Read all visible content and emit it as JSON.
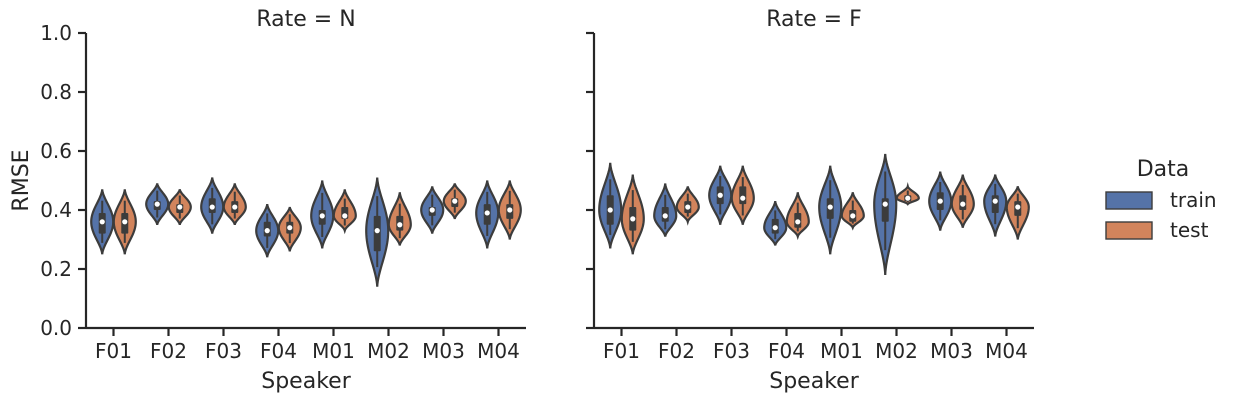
{
  "chart_data": {
    "type": "violin",
    "ylabel": "RMSE",
    "ylim": [
      0.0,
      1.0
    ],
    "yticks": [
      "0.0",
      "0.2",
      "0.4",
      "0.6",
      "0.8",
      "1.0"
    ],
    "categories": [
      "F01",
      "F02",
      "F03",
      "F04",
      "M01",
      "M02",
      "M03",
      "M04"
    ],
    "xlabel": "Speaker",
    "legend": {
      "title": "Data",
      "placement": "right",
      "items": [
        {
          "label": "train",
          "color": "#5573a8"
        },
        {
          "label": "test",
          "color": "#d2845c"
        }
      ]
    },
    "panels": [
      {
        "title": "Rate = N",
        "series": [
          {
            "name": "train",
            "color": "#5573a8",
            "groups": [
              {
                "min": 0.25,
                "q1": 0.32,
                "median": 0.36,
                "q3": 0.39,
                "max": 0.47
              },
              {
                "min": 0.35,
                "q1": 0.4,
                "median": 0.42,
                "q3": 0.43,
                "max": 0.49
              },
              {
                "min": 0.32,
                "q1": 0.39,
                "median": 0.41,
                "q3": 0.44,
                "max": 0.51
              },
              {
                "min": 0.24,
                "q1": 0.31,
                "median": 0.33,
                "q3": 0.36,
                "max": 0.42
              },
              {
                "min": 0.27,
                "q1": 0.35,
                "median": 0.38,
                "q3": 0.4,
                "max": 0.5
              },
              {
                "min": 0.14,
                "q1": 0.26,
                "median": 0.33,
                "q3": 0.38,
                "max": 0.51
              },
              {
                "min": 0.32,
                "q1": 0.38,
                "median": 0.4,
                "q3": 0.41,
                "max": 0.48
              },
              {
                "min": 0.27,
                "q1": 0.35,
                "median": 0.39,
                "q3": 0.42,
                "max": 0.5
              }
            ]
          },
          {
            "name": "test",
            "color": "#d2845c",
            "groups": [
              {
                "min": 0.25,
                "q1": 0.32,
                "median": 0.36,
                "q3": 0.39,
                "max": 0.47
              },
              {
                "min": 0.35,
                "q1": 0.39,
                "median": 0.41,
                "q3": 0.42,
                "max": 0.47
              },
              {
                "min": 0.35,
                "q1": 0.39,
                "median": 0.41,
                "q3": 0.43,
                "max": 0.49
              },
              {
                "min": 0.26,
                "q1": 0.32,
                "median": 0.34,
                "q3": 0.36,
                "max": 0.41
              },
              {
                "min": 0.33,
                "q1": 0.37,
                "median": 0.38,
                "q3": 0.41,
                "max": 0.47
              },
              {
                "min": 0.28,
                "q1": 0.33,
                "median": 0.35,
                "q3": 0.38,
                "max": 0.46
              },
              {
                "min": 0.37,
                "q1": 0.41,
                "median": 0.43,
                "q3": 0.44,
                "max": 0.49
              },
              {
                "min": 0.3,
                "q1": 0.37,
                "median": 0.4,
                "q3": 0.42,
                "max": 0.5
              }
            ]
          }
        ]
      },
      {
        "title": "Rate = F",
        "series": [
          {
            "name": "train",
            "color": "#5573a8",
            "groups": [
              {
                "min": 0.27,
                "q1": 0.35,
                "median": 0.4,
                "q3": 0.45,
                "max": 0.56
              },
              {
                "min": 0.31,
                "q1": 0.36,
                "median": 0.38,
                "q3": 0.41,
                "max": 0.49
              },
              {
                "min": 0.35,
                "q1": 0.42,
                "median": 0.45,
                "q3": 0.48,
                "max": 0.55
              },
              {
                "min": 0.28,
                "q1": 0.32,
                "median": 0.34,
                "q3": 0.37,
                "max": 0.43
              },
              {
                "min": 0.25,
                "q1": 0.37,
                "median": 0.41,
                "q3": 0.44,
                "max": 0.55
              },
              {
                "min": 0.18,
                "q1": 0.36,
                "median": 0.42,
                "q3": 0.44,
                "max": 0.59
              },
              {
                "min": 0.33,
                "q1": 0.4,
                "median": 0.43,
                "q3": 0.46,
                "max": 0.53
              },
              {
                "min": 0.31,
                "q1": 0.39,
                "median": 0.43,
                "q3": 0.45,
                "max": 0.52
              }
            ]
          },
          {
            "name": "test",
            "color": "#d2845c",
            "groups": [
              {
                "min": 0.25,
                "q1": 0.33,
                "median": 0.37,
                "q3": 0.41,
                "max": 0.52
              },
              {
                "min": 0.36,
                "q1": 0.39,
                "median": 0.41,
                "q3": 0.43,
                "max": 0.48
              },
              {
                "min": 0.35,
                "q1": 0.42,
                "median": 0.44,
                "q3": 0.48,
                "max": 0.55
              },
              {
                "min": 0.31,
                "q1": 0.34,
                "median": 0.36,
                "q3": 0.39,
                "max": 0.46
              },
              {
                "min": 0.34,
                "q1": 0.36,
                "median": 0.38,
                "q3": 0.4,
                "max": 0.46
              },
              {
                "min": 0.42,
                "q1": 0.43,
                "median": 0.44,
                "q3": 0.45,
                "max": 0.48
              },
              {
                "min": 0.34,
                "q1": 0.4,
                "median": 0.42,
                "q3": 0.45,
                "max": 0.52
              },
              {
                "min": 0.3,
                "q1": 0.38,
                "median": 0.41,
                "q3": 0.43,
                "max": 0.48
              }
            ]
          }
        ]
      }
    ]
  }
}
